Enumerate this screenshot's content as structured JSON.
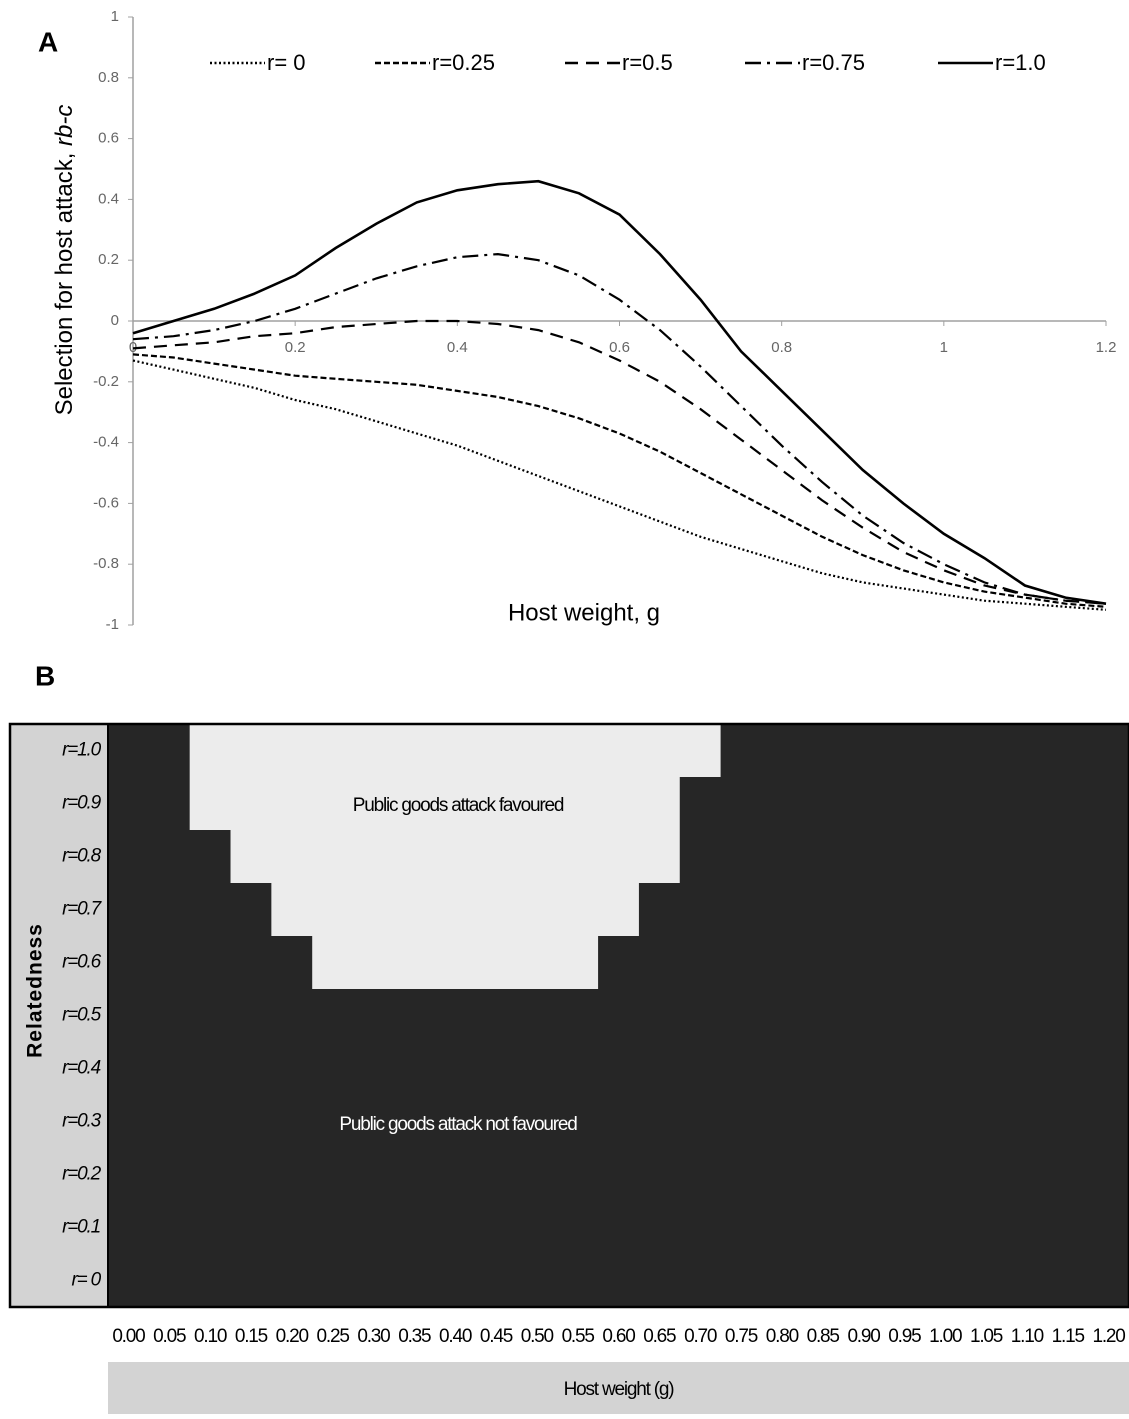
{
  "chart_data": [
    {
      "type": "line",
      "panel_label": "A",
      "x_label": "Host weight, g",
      "y_label": "Selection for host attack,",
      "y_label_italic": "rb-c",
      "x": [
        0,
        0.05,
        0.1,
        0.15,
        0.2,
        0.25,
        0.3,
        0.35,
        0.4,
        0.45,
        0.5,
        0.55,
        0.6,
        0.65,
        0.7,
        0.75,
        0.8,
        0.85,
        0.9,
        0.95,
        1,
        1.05,
        1.1,
        1.15,
        1.2
      ],
      "xlim": [
        0,
        1.2
      ],
      "xticks": [
        0,
        0.2,
        0.4,
        0.6,
        0.8,
        1,
        1.2
      ],
      "ylim": [
        -1,
        1
      ],
      "yticks": [
        1,
        0.8,
        0.6,
        0.4,
        0.2,
        0,
        -0.2,
        -0.4,
        -0.6,
        -0.8,
        -1
      ],
      "legend": "top",
      "series": [
        {
          "name": "r= 0",
          "color": "#000000",
          "style": "dotted",
          "values": [
            -0.13,
            -0.16,
            -0.19,
            -0.22,
            -0.26,
            -0.29,
            -0.33,
            -0.37,
            -0.41,
            -0.46,
            -0.51,
            -0.56,
            -0.61,
            -0.66,
            -0.71,
            -0.75,
            -0.79,
            -0.83,
            -0.86,
            -0.88,
            -0.9,
            -0.92,
            -0.93,
            -0.94,
            -0.95
          ]
        },
        {
          "name": "r=0.25",
          "color": "#000000",
          "style": "dashed",
          "values": [
            -0.11,
            -0.12,
            -0.14,
            -0.16,
            -0.18,
            -0.19,
            -0.2,
            -0.21,
            -0.23,
            -0.25,
            -0.28,
            -0.32,
            -0.37,
            -0.43,
            -0.5,
            -0.57,
            -0.64,
            -0.71,
            -0.77,
            -0.82,
            -0.86,
            -0.89,
            -0.91,
            -0.93,
            -0.94
          ]
        },
        {
          "name": "r=0.5",
          "color": "#000000",
          "style": "long-dashed",
          "values": [
            -0.09,
            -0.08,
            -0.07,
            -0.05,
            -0.04,
            -0.02,
            -0.01,
            0,
            0,
            -0.01,
            -0.03,
            -0.07,
            -0.13,
            -0.2,
            -0.29,
            -0.39,
            -0.49,
            -0.59,
            -0.68,
            -0.76,
            -0.82,
            -0.87,
            -0.9,
            -0.92,
            -0.93
          ]
        },
        {
          "name": "r=0.75",
          "color": "#000000",
          "style": "dash-dot",
          "values": [
            -0.06,
            -0.05,
            -0.03,
            0,
            0.04,
            0.09,
            0.14,
            0.18,
            0.21,
            0.22,
            0.2,
            0.15,
            0.07,
            -0.03,
            -0.15,
            -0.28,
            -0.41,
            -0.53,
            -0.64,
            -0.73,
            -0.8,
            -0.86,
            -0.9,
            -0.92,
            -0.93
          ]
        },
        {
          "name": "r=1.0",
          "color": "#000000",
          "style": "solid",
          "values": [
            -0.04,
            0,
            0.04,
            0.09,
            0.15,
            0.24,
            0.32,
            0.39,
            0.43,
            0.45,
            0.46,
            0.42,
            0.35,
            0.22,
            0.07,
            -0.1,
            -0.23,
            -0.36,
            -0.49,
            -0.6,
            -0.7,
            -0.78,
            -0.87,
            -0.91,
            -0.93
          ]
        }
      ]
    },
    {
      "type": "heatmap",
      "panel_label": "B",
      "x_label": "Host weight (g)",
      "y_label": "Relatedness",
      "x_categories": [
        "0.00",
        "0.05",
        "0.10",
        "0.15",
        "0.20",
        "0.25",
        "0.30",
        "0.35",
        "0.40",
        "0.45",
        "0.50",
        "0.55",
        "0.60",
        "0.65",
        "0.70",
        "0.75",
        "0.80",
        "0.85",
        "0.90",
        "0.95",
        "1.00",
        "1.05",
        "1.10",
        "1.15",
        "1.20"
      ],
      "y_categories": [
        "r=1.0",
        "r=0.9",
        "r=0.8",
        "r=0.7",
        "r=0.6",
        "r=0.5",
        "r=0.4",
        "r=0.3",
        "r=0.2",
        "r=0.1",
        "r= 0"
      ],
      "palette": [
        "#262626",
        "#ececec"
      ],
      "annotations": [
        "Public goods attack favoured",
        "Public goods attack not favoured"
      ],
      "values": [
        [
          0,
          0,
          1,
          1,
          1,
          1,
          1,
          1,
          1,
          1,
          1,
          1,
          1,
          1,
          1,
          0,
          0,
          0,
          0,
          0,
          0,
          0,
          0,
          0,
          0
        ],
        [
          0,
          0,
          1,
          1,
          1,
          1,
          1,
          1,
          1,
          1,
          1,
          1,
          1,
          1,
          0,
          0,
          0,
          0,
          0,
          0,
          0,
          0,
          0,
          0,
          0
        ],
        [
          0,
          0,
          0,
          1,
          1,
          1,
          1,
          1,
          1,
          1,
          1,
          1,
          1,
          1,
          0,
          0,
          0,
          0,
          0,
          0,
          0,
          0,
          0,
          0,
          0
        ],
        [
          0,
          0,
          0,
          0,
          1,
          1,
          1,
          1,
          1,
          1,
          1,
          1,
          1,
          0,
          0,
          0,
          0,
          0,
          0,
          0,
          0,
          0,
          0,
          0,
          0
        ],
        [
          0,
          0,
          0,
          0,
          0,
          1,
          1,
          1,
          1,
          1,
          1,
          1,
          0,
          0,
          0,
          0,
          0,
          0,
          0,
          0,
          0,
          0,
          0,
          0,
          0
        ],
        [
          0,
          0,
          0,
          0,
          0,
          0,
          0,
          0,
          0,
          0,
          0,
          0,
          0,
          0,
          0,
          0,
          0,
          0,
          0,
          0,
          0,
          0,
          0,
          0,
          0
        ],
        [
          0,
          0,
          0,
          0,
          0,
          0,
          0,
          0,
          0,
          0,
          0,
          0,
          0,
          0,
          0,
          0,
          0,
          0,
          0,
          0,
          0,
          0,
          0,
          0,
          0
        ],
        [
          0,
          0,
          0,
          0,
          0,
          0,
          0,
          0,
          0,
          0,
          0,
          0,
          0,
          0,
          0,
          0,
          0,
          0,
          0,
          0,
          0,
          0,
          0,
          0,
          0
        ],
        [
          0,
          0,
          0,
          0,
          0,
          0,
          0,
          0,
          0,
          0,
          0,
          0,
          0,
          0,
          0,
          0,
          0,
          0,
          0,
          0,
          0,
          0,
          0,
          0,
          0
        ],
        [
          0,
          0,
          0,
          0,
          0,
          0,
          0,
          0,
          0,
          0,
          0,
          0,
          0,
          0,
          0,
          0,
          0,
          0,
          0,
          0,
          0,
          0,
          0,
          0,
          0
        ],
        [
          0,
          0,
          0,
          0,
          0,
          0,
          0,
          0,
          0,
          0,
          0,
          0,
          0,
          0,
          0,
          0,
          0,
          0,
          0,
          0,
          0,
          0,
          0,
          0,
          0
        ]
      ]
    }
  ]
}
